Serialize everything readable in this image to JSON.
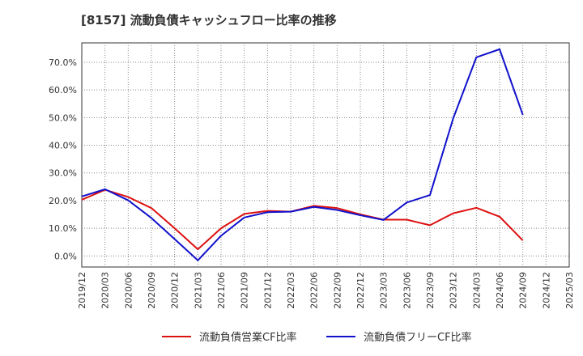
{
  "chart_data": {
    "type": "line",
    "title": "[8157]  流動負債キャッシュフロー比率の推移",
    "x": [
      "2019/12",
      "2020/03",
      "2020/06",
      "2020/09",
      "2020/12",
      "2021/03",
      "2021/06",
      "2021/09",
      "2021/12",
      "2022/03",
      "2022/06",
      "2022/09",
      "2022/12",
      "2023/03",
      "2023/06",
      "2023/09",
      "2023/12",
      "2024/03",
      "2024/06",
      "2024/09",
      "2024/12",
      "2025/03"
    ],
    "ylim": [
      -4,
      77
    ],
    "yticks": [
      0,
      10,
      20,
      30,
      40,
      50,
      60,
      70
    ],
    "ytick_labels": [
      "0.0%",
      "10.0%",
      "20.0%",
      "30.0%",
      "40.0%",
      "50.0%",
      "60.0%",
      "70.0%"
    ],
    "grid": true,
    "legend_position": "bottom",
    "series": [
      {
        "name": "流動負債営業CF比率",
        "color": "#dd1111",
        "values": [
          20.3,
          23.9,
          21.3,
          17.3,
          10.0,
          2.4,
          10.0,
          15.2,
          16.3,
          16.0,
          18.1,
          17.3,
          15.0,
          13.1,
          13.1,
          11.1,
          15.4,
          17.4,
          14.2,
          5.6,
          null,
          null
        ]
      },
      {
        "name": "流動負債フリーCF比率",
        "color": "#1111cc",
        "values": [
          21.5,
          24.1,
          20.1,
          13.7,
          6.1,
          -1.6,
          7.3,
          13.9,
          15.8,
          16.0,
          17.7,
          16.6,
          14.7,
          13.0,
          19.3,
          22.0,
          49.7,
          71.8,
          74.7,
          51.0,
          null,
          null
        ]
      }
    ]
  }
}
